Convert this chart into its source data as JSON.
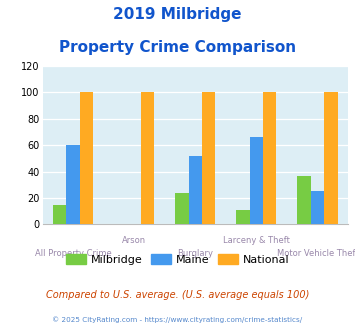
{
  "title_line1": "2019 Milbridge",
  "title_line2": "Property Crime Comparison",
  "categories": [
    "All Property Crime",
    "Arson",
    "Burglary",
    "Larceny & Theft",
    "Motor Vehicle Theft"
  ],
  "milbridge": [
    15,
    0,
    24,
    11,
    37
  ],
  "maine": [
    60,
    0,
    52,
    66,
    25
  ],
  "national": [
    100,
    100,
    100,
    100,
    100
  ],
  "color_milbridge": "#77cc44",
  "color_maine": "#4499ee",
  "color_national": "#ffaa22",
  "ylim": [
    0,
    120
  ],
  "yticks": [
    0,
    20,
    40,
    60,
    80,
    100,
    120
  ],
  "bg_color": "#ddeef5",
  "title_color": "#1155cc",
  "xlabel_color": "#9988aa",
  "top_label_cats": [
    "Arson",
    "Larceny & Theft"
  ],
  "bottom_label_cats": [
    "All Property Crime",
    "Burglary",
    "Motor Vehicle Theft"
  ],
  "footer_note": "Compared to U.S. average. (U.S. average equals 100)",
  "footer_copy": "© 2025 CityRating.com - https://www.cityrating.com/crime-statistics/",
  "legend_labels": [
    "Milbridge",
    "Maine",
    "National"
  ],
  "bar_width": 0.22
}
